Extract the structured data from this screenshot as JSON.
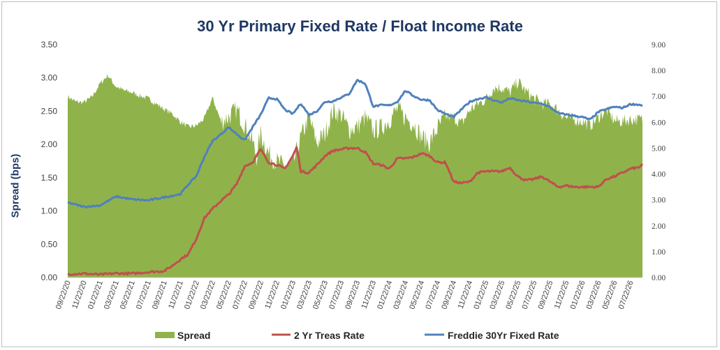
{
  "chart_data": {
    "type": "area",
    "title": "30 Yr Primary Fixed Rate / Float Income Rate",
    "ylabel": "Spread (bps)",
    "ylim": [
      0,
      3.5
    ],
    "y2lim": [
      0,
      9
    ],
    "y_ticks": [
      "0.00",
      "0.50",
      "1.00",
      "1.50",
      "2.00",
      "2.50",
      "3.00",
      "3.50"
    ],
    "y2_ticks": [
      "0.00",
      "1.00",
      "2.00",
      "3.00",
      "4.00",
      "5.00",
      "6.00",
      "7.00",
      "8.00",
      "9.00"
    ],
    "x_ticks": [
      "09/22/20",
      "11/22/20",
      "01/22/21",
      "03/22/21",
      "05/22/21",
      "07/22/21",
      "09/22/21",
      "11/22/21",
      "01/22/22",
      "03/22/22",
      "05/22/22",
      "07/22/22",
      "09/22/22",
      "11/22/22",
      "01/22/23",
      "03/22/23",
      "05/22/23",
      "07/22/23",
      "09/22/23",
      "11/22/23",
      "01/22/24",
      "03/22/24",
      "05/22/24",
      "07/22/24",
      "09/22/24",
      "11/22/24",
      "01/22/25",
      "03/22/25",
      "05/22/25",
      "07/22/25",
      "09/22/25",
      "11/22/25",
      "01/22/26",
      "03/22/26",
      "05/22/26",
      "07/22/26"
    ],
    "x_months": [
      0,
      2,
      4,
      6,
      8,
      10,
      12,
      14,
      16,
      18,
      20,
      22,
      24,
      26,
      28,
      30,
      32,
      34,
      36,
      38,
      40,
      42,
      44,
      46,
      48,
      50,
      52,
      54,
      56,
      58,
      60,
      62,
      64,
      66,
      68,
      70
    ],
    "legend": [
      "Spread",
      "2 Yr Treas Rate",
      "Freddie 30Yr Fixed Rate"
    ],
    "grid": false,
    "legend_position": "bottom",
    "series": [
      {
        "name": "Spread",
        "axis": "left",
        "color": "#8fb34a",
        "x": [
          0,
          1,
          2,
          3,
          4,
          5,
          5.5,
          6,
          7,
          8,
          9,
          10,
          11,
          12,
          13,
          14,
          15,
          16,
          17,
          18,
          19,
          20,
          21,
          22,
          23,
          23.5,
          24,
          25,
          26,
          27,
          28,
          29,
          30,
          31,
          32,
          33,
          34,
          35,
          36,
          37,
          38,
          39,
          40,
          41,
          42,
          43,
          44,
          45,
          46,
          47,
          48,
          49,
          50,
          51,
          52,
          53,
          54,
          55,
          56,
          57,
          58,
          59,
          60,
          61,
          62,
          63,
          64,
          65,
          66,
          67,
          68,
          69,
          70,
          71,
          71.5
        ],
        "values": [
          2.73,
          2.65,
          2.64,
          2.72,
          2.92,
          3.05,
          2.96,
          2.88,
          2.82,
          2.79,
          2.74,
          2.7,
          2.62,
          2.54,
          2.47,
          2.35,
          2.27,
          2.29,
          2.4,
          2.71,
          2.38,
          2.45,
          2.56,
          2.34,
          2.08,
          1.85,
          2.2,
          1.9,
          1.78,
          1.7,
          1.73,
          2.14,
          2.45,
          2.06,
          2.2,
          2.55,
          2.49,
          2.26,
          2.3,
          2.44,
          2.25,
          2.29,
          2.41,
          2.57,
          2.44,
          2.36,
          2.15,
          2.06,
          2.28,
          2.44,
          2.43,
          2.33,
          2.54,
          2.63,
          2.7,
          2.88,
          2.88,
          2.8,
          2.97,
          2.82,
          2.71,
          2.64,
          2.63,
          2.54,
          2.42,
          2.4,
          2.37,
          2.31,
          2.43,
          2.54,
          2.38,
          2.37,
          2.4,
          2.4,
          2.4
        ]
      },
      {
        "name": "2 Yr Treas Rate",
        "axis": "right",
        "color": "#c0504d",
        "x": [
          0,
          2,
          4,
          6,
          8,
          10,
          12,
          13,
          14,
          15,
          16,
          17,
          18,
          19,
          20,
          21,
          22,
          23,
          24,
          25,
          26,
          27,
          28,
          28.5,
          29,
          30,
          31,
          32,
          33,
          34,
          35,
          36,
          37,
          38,
          39,
          40,
          41,
          42,
          43,
          44,
          45,
          46,
          47,
          48,
          49,
          50,
          51,
          52,
          53,
          54,
          55,
          56,
          57,
          58,
          59,
          60,
          61,
          62,
          63,
          64,
          65,
          66,
          67,
          68,
          69,
          70,
          71,
          71.5
        ],
        "values": [
          0.13,
          0.15,
          0.11,
          0.16,
          0.15,
          0.21,
          0.25,
          0.45,
          0.7,
          0.9,
          1.5,
          2.3,
          2.65,
          2.95,
          3.2,
          3.6,
          4.3,
          4.45,
          4.95,
          4.45,
          4.35,
          4.2,
          4.7,
          5.05,
          4.1,
          4.05,
          4.35,
          4.7,
          4.9,
          4.95,
          5.0,
          5.0,
          4.85,
          4.4,
          4.35,
          4.2,
          4.6,
          4.6,
          4.65,
          4.8,
          4.7,
          4.45,
          4.45,
          3.7,
          3.65,
          3.7,
          4.05,
          4.1,
          4.1,
          4.1,
          4.25,
          3.9,
          3.75,
          3.8,
          3.9,
          3.7,
          3.5,
          3.55,
          3.5,
          3.5,
          3.5,
          3.5,
          3.8,
          3.9,
          4.05,
          4.2,
          4.25,
          4.35
        ]
      },
      {
        "name": "Freddie 30Yr Fixed Rate",
        "axis": "right",
        "color": "#4f81bd",
        "x": [
          0,
          2,
          4,
          6,
          8,
          10,
          12,
          14,
          15,
          16,
          17,
          18,
          19,
          20,
          21,
          22,
          23,
          24,
          25,
          26,
          27,
          28,
          29,
          30,
          31,
          32,
          33,
          34,
          35,
          36,
          37,
          38,
          39,
          40,
          41,
          42,
          43,
          44,
          45,
          46,
          47,
          48,
          49,
          50,
          51,
          52,
          53,
          54,
          55,
          56,
          57,
          58,
          59,
          60,
          61,
          62,
          63,
          64,
          65,
          66,
          67,
          68,
          69,
          70,
          71,
          71.5
        ],
        "values": [
          2.9,
          2.73,
          2.78,
          3.13,
          3.02,
          2.98,
          3.1,
          3.22,
          3.6,
          3.92,
          4.67,
          5.27,
          5.52,
          5.81,
          5.55,
          5.3,
          5.81,
          6.29,
          6.94,
          6.9,
          6.49,
          6.32,
          6.73,
          6.28,
          6.43,
          6.79,
          6.81,
          6.96,
          7.09,
          7.63,
          7.5,
          6.61,
          6.66,
          6.65,
          6.79,
          7.22,
          7.02,
          6.87,
          6.86,
          6.47,
          6.32,
          6.2,
          6.5,
          6.79,
          6.9,
          6.96,
          6.85,
          6.76,
          6.93,
          6.85,
          6.81,
          6.75,
          6.72,
          6.58,
          6.35,
          6.3,
          6.25,
          6.2,
          6.1,
          6.4,
          6.5,
          6.6,
          6.55,
          6.7,
          6.68,
          6.65
        ]
      }
    ]
  }
}
